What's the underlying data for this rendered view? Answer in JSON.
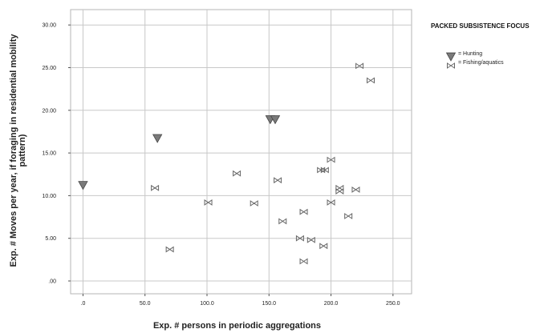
{
  "chart_data": {
    "type": "scatter",
    "xlabel": "Exp. # persons in periodic aggregations",
    "ylabel_lines": [
      "Exp. # Moves per year, if foraging in residential mobility",
      "pattern)"
    ],
    "xlim": [
      -10,
      265
    ],
    "ylim": [
      -1.5,
      31.8
    ],
    "x_ticks": [
      0,
      50,
      100,
      150,
      200,
      250
    ],
    "x_tick_labels": [
      ".0",
      "50.0",
      "100.0",
      "150.0",
      "200.0",
      "250.0"
    ],
    "y_ticks": [
      0,
      5,
      10,
      15,
      20,
      25,
      30
    ],
    "y_tick_labels": [
      ".00",
      "5.00",
      "10.00",
      "15.00",
      "20.00",
      "25.00",
      "30.00"
    ],
    "grid": true,
    "legend": {
      "title": "PACKED SUBSISTENCE FOCUS",
      "placement": "right",
      "entries": [
        {
          "marker": "triangle-down",
          "label": "= Hunting"
        },
        {
          "marker": "bowtie",
          "label": "= Fishing/aquatics"
        }
      ]
    },
    "series": [
      {
        "name": "= Hunting",
        "marker": "triangle-down",
        "color": "#7a7a7a",
        "points": [
          {
            "x": 0,
            "y": 11.2
          },
          {
            "x": 60,
            "y": 16.7
          },
          {
            "x": 151,
            "y": 18.9
          },
          {
            "x": 155,
            "y": 18.9
          }
        ]
      },
      {
        "name": "= Fishing/aquatics",
        "marker": "bowtie",
        "color": "#666666",
        "points": [
          {
            "x": 58,
            "y": 10.9
          },
          {
            "x": 70,
            "y": 3.7
          },
          {
            "x": 101,
            "y": 9.2
          },
          {
            "x": 124,
            "y": 12.6
          },
          {
            "x": 138,
            "y": 9.1
          },
          {
            "x": 157,
            "y": 11.8
          },
          {
            "x": 161,
            "y": 7.0
          },
          {
            "x": 175,
            "y": 5.0
          },
          {
            "x": 178,
            "y": 8.1
          },
          {
            "x": 178,
            "y": 2.3
          },
          {
            "x": 184,
            "y": 4.8
          },
          {
            "x": 192,
            "y": 13.0
          },
          {
            "x": 195,
            "y": 13.0
          },
          {
            "x": 194,
            "y": 4.1
          },
          {
            "x": 200,
            "y": 14.2
          },
          {
            "x": 200,
            "y": 9.2
          },
          {
            "x": 207,
            "y": 10.9
          },
          {
            "x": 207,
            "y": 10.5
          },
          {
            "x": 214,
            "y": 7.6
          },
          {
            "x": 220,
            "y": 10.7
          },
          {
            "x": 223,
            "y": 25.2
          },
          {
            "x": 232,
            "y": 23.5
          }
        ]
      }
    ]
  }
}
